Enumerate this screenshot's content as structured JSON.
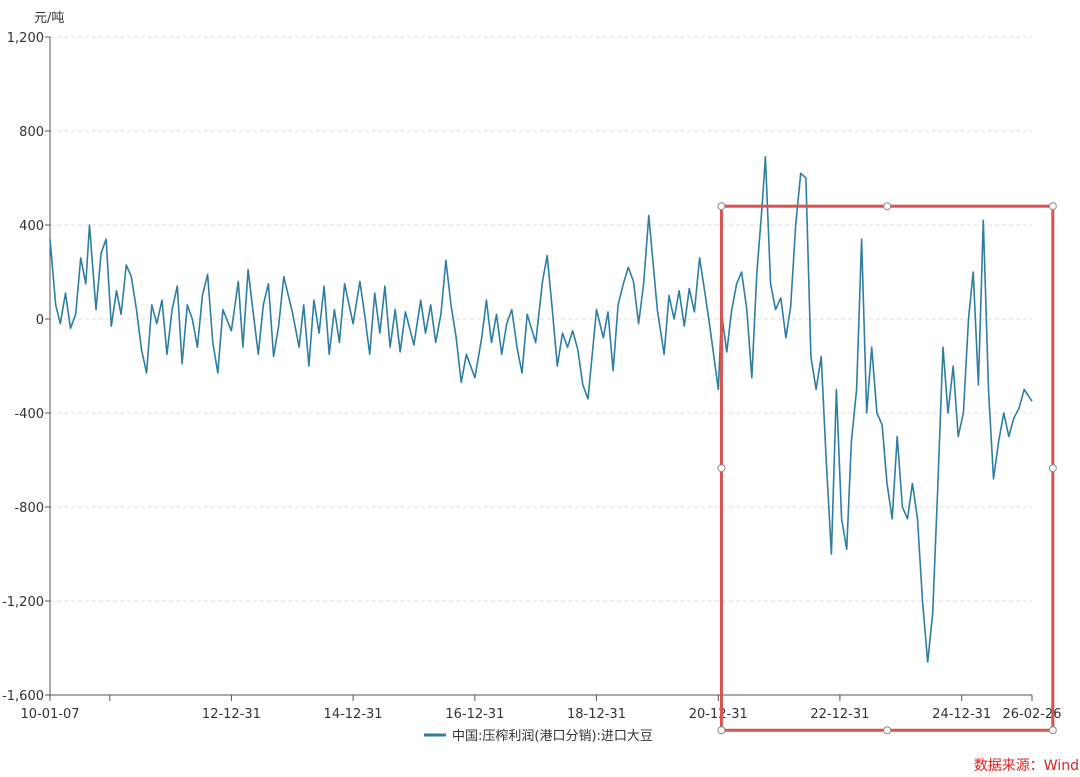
{
  "chart_data": {
    "type": "line",
    "y_unit": "元/吨",
    "ylim": [
      -1600,
      1200
    ],
    "y_ticks": [
      1200,
      800,
      400,
      0,
      -400,
      -800,
      -1200,
      -1600
    ],
    "y_tick_labels": [
      "1,200",
      "800",
      "400",
      "0",
      "-400",
      "-800",
      "-1,200",
      "-1,600"
    ],
    "x_ticks": [
      {
        "label": "10-01-07",
        "date": "2010-01-07"
      },
      {
        "label": "12-12-31",
        "date": "2012-12-31"
      },
      {
        "label": "14-12-31",
        "date": "2014-12-31"
      },
      {
        "label": "16-12-31",
        "date": "2016-12-31"
      },
      {
        "label": "18-12-31",
        "date": "2018-12-31"
      },
      {
        "label": "20-12-31",
        "date": "2020-12-31"
      },
      {
        "label": "22-12-31",
        "date": "2022-12-31"
      },
      {
        "label": "24-12-31",
        "date": "2024-12-31"
      },
      {
        "label": "26-02-26",
        "date": "2026-02-26"
      }
    ],
    "grid": "horizontal-dashed",
    "legend_position": "bottom-center",
    "series": [
      {
        "name": "中国:压榨利润(港口分销):进口大豆",
        "color": "#2e7ea3",
        "points": [
          [
            "2010-01-07",
            340
          ],
          [
            "2010-02-10",
            60
          ],
          [
            "2010-03-10",
            -20
          ],
          [
            "2010-04-10",
            110
          ],
          [
            "2010-05-10",
            -40
          ],
          [
            "2010-06-10",
            20
          ],
          [
            "2010-07-10",
            260
          ],
          [
            "2010-08-10",
            150
          ],
          [
            "2010-09-01",
            400
          ],
          [
            "2010-10-10",
            40
          ],
          [
            "2010-11-10",
            280
          ],
          [
            "2010-12-10",
            340
          ],
          [
            "2011-01-10",
            -30
          ],
          [
            "2011-02-10",
            120
          ],
          [
            "2011-03-10",
            20
          ],
          [
            "2011-04-10",
            230
          ],
          [
            "2011-05-10",
            180
          ],
          [
            "2011-06-10",
            40
          ],
          [
            "2011-07-10",
            -130
          ],
          [
            "2011-08-10",
            -230
          ],
          [
            "2011-09-10",
            60
          ],
          [
            "2011-10-10",
            -20
          ],
          [
            "2011-11-10",
            80
          ],
          [
            "2011-12-10",
            -150
          ],
          [
            "2012-01-10",
            40
          ],
          [
            "2012-02-10",
            140
          ],
          [
            "2012-03-10",
            -190
          ],
          [
            "2012-04-10",
            60
          ],
          [
            "2012-05-10",
            0
          ],
          [
            "2012-06-10",
            -120
          ],
          [
            "2012-07-10",
            100
          ],
          [
            "2012-08-10",
            190
          ],
          [
            "2012-09-10",
            -100
          ],
          [
            "2012-10-10",
            -230
          ],
          [
            "2012-11-10",
            40
          ],
          [
            "2012-12-31",
            -50
          ],
          [
            "2013-02-10",
            160
          ],
          [
            "2013-03-10",
            -120
          ],
          [
            "2013-04-10",
            210
          ],
          [
            "2013-05-10",
            30
          ],
          [
            "2013-06-10",
            -150
          ],
          [
            "2013-07-10",
            60
          ],
          [
            "2013-08-10",
            150
          ],
          [
            "2013-09-10",
            -160
          ],
          [
            "2013-10-10",
            -30
          ],
          [
            "2013-11-10",
            180
          ],
          [
            "2013-12-31",
            30
          ],
          [
            "2014-02-10",
            -120
          ],
          [
            "2014-03-10",
            60
          ],
          [
            "2014-04-10",
            -200
          ],
          [
            "2014-05-10",
            80
          ],
          [
            "2014-06-10",
            -60
          ],
          [
            "2014-07-10",
            140
          ],
          [
            "2014-08-10",
            -150
          ],
          [
            "2014-09-10",
            40
          ],
          [
            "2014-10-10",
            -100
          ],
          [
            "2014-11-10",
            150
          ],
          [
            "2014-12-31",
            -20
          ],
          [
            "2015-02-10",
            160
          ],
          [
            "2015-03-10",
            20
          ],
          [
            "2015-04-10",
            -150
          ],
          [
            "2015-05-10",
            110
          ],
          [
            "2015-06-10",
            -60
          ],
          [
            "2015-07-10",
            140
          ],
          [
            "2015-08-10",
            -120
          ],
          [
            "2015-09-10",
            40
          ],
          [
            "2015-10-10",
            -140
          ],
          [
            "2015-11-10",
            30
          ],
          [
            "2015-12-31",
            -110
          ],
          [
            "2016-02-10",
            80
          ],
          [
            "2016-03-10",
            -60
          ],
          [
            "2016-04-10",
            60
          ],
          [
            "2016-05-10",
            -100
          ],
          [
            "2016-06-10",
            20
          ],
          [
            "2016-07-10",
            250
          ],
          [
            "2016-08-10",
            60
          ],
          [
            "2016-09-10",
            -80
          ],
          [
            "2016-10-10",
            -270
          ],
          [
            "2016-11-10",
            -150
          ],
          [
            "2016-12-31",
            -250
          ],
          [
            "2017-02-10",
            -80
          ],
          [
            "2017-03-10",
            80
          ],
          [
            "2017-04-10",
            -100
          ],
          [
            "2017-05-10",
            20
          ],
          [
            "2017-06-10",
            -150
          ],
          [
            "2017-07-10",
            -20
          ],
          [
            "2017-08-10",
            40
          ],
          [
            "2017-09-10",
            -120
          ],
          [
            "2017-10-10",
            -230
          ],
          [
            "2017-11-10",
            20
          ],
          [
            "2017-12-31",
            -100
          ],
          [
            "2018-02-10",
            160
          ],
          [
            "2018-03-10",
            270
          ],
          [
            "2018-04-10",
            40
          ],
          [
            "2018-05-10",
            -200
          ],
          [
            "2018-06-10",
            -60
          ],
          [
            "2018-07-10",
            -120
          ],
          [
            "2018-08-10",
            -50
          ],
          [
            "2018-09-10",
            -130
          ],
          [
            "2018-10-10",
            -280
          ],
          [
            "2018-11-10",
            -340
          ],
          [
            "2018-12-31",
            40
          ],
          [
            "2019-02-10",
            -80
          ],
          [
            "2019-03-10",
            30
          ],
          [
            "2019-04-10",
            -220
          ],
          [
            "2019-05-10",
            60
          ],
          [
            "2019-06-10",
            150
          ],
          [
            "2019-07-10",
            220
          ],
          [
            "2019-08-10",
            160
          ],
          [
            "2019-09-10",
            -20
          ],
          [
            "2019-10-10",
            150
          ],
          [
            "2019-11-10",
            440
          ],
          [
            "2019-12-31",
            40
          ],
          [
            "2020-02-10",
            -150
          ],
          [
            "2020-03-10",
            100
          ],
          [
            "2020-04-10",
            0
          ],
          [
            "2020-05-10",
            120
          ],
          [
            "2020-06-10",
            -30
          ],
          [
            "2020-07-10",
            130
          ],
          [
            "2020-08-10",
            30
          ],
          [
            "2020-09-10",
            260
          ],
          [
            "2020-10-10",
            120
          ],
          [
            "2020-11-10",
            -30
          ],
          [
            "2020-12-31",
            -300
          ],
          [
            "2021-01-20",
            20
          ],
          [
            "2021-02-20",
            -140
          ],
          [
            "2021-03-20",
            30
          ],
          [
            "2021-04-20",
            150
          ],
          [
            "2021-05-20",
            200
          ],
          [
            "2021-06-20",
            40
          ],
          [
            "2021-07-20",
            -250
          ],
          [
            "2021-08-20",
            200
          ],
          [
            "2021-09-20",
            480
          ],
          [
            "2021-10-10",
            690
          ],
          [
            "2021-11-10",
            150
          ],
          [
            "2021-12-10",
            40
          ],
          [
            "2022-01-10",
            90
          ],
          [
            "2022-02-10",
            -80
          ],
          [
            "2022-03-10",
            50
          ],
          [
            "2022-04-10",
            400
          ],
          [
            "2022-05-10",
            620
          ],
          [
            "2022-06-10",
            600
          ],
          [
            "2022-07-10",
            -160
          ],
          [
            "2022-08-10",
            -300
          ],
          [
            "2022-09-10",
            -160
          ],
          [
            "2022-10-10",
            -600
          ],
          [
            "2022-11-10",
            -1000
          ],
          [
            "2022-12-10",
            -300
          ],
          [
            "2023-01-10",
            -850
          ],
          [
            "2023-02-10",
            -980
          ],
          [
            "2023-03-10",
            -520
          ],
          [
            "2023-04-10",
            -300
          ],
          [
            "2023-05-10",
            340
          ],
          [
            "2023-06-10",
            -400
          ],
          [
            "2023-07-10",
            -120
          ],
          [
            "2023-08-10",
            -400
          ],
          [
            "2023-09-10",
            -450
          ],
          [
            "2023-10-10",
            -700
          ],
          [
            "2023-11-10",
            -850
          ],
          [
            "2023-12-10",
            -500
          ],
          [
            "2024-01-10",
            -800
          ],
          [
            "2024-02-10",
            -850
          ],
          [
            "2024-03-10",
            -700
          ],
          [
            "2024-04-10",
            -850
          ],
          [
            "2024-05-10",
            -1200
          ],
          [
            "2024-06-10",
            -1460
          ],
          [
            "2024-07-10",
            -1250
          ],
          [
            "2024-08-10",
            -700
          ],
          [
            "2024-09-10",
            -120
          ],
          [
            "2024-10-10",
            -400
          ],
          [
            "2024-11-10",
            -200
          ],
          [
            "2024-12-10",
            -500
          ],
          [
            "2025-01-10",
            -400
          ],
          [
            "2025-02-10",
            0
          ],
          [
            "2025-03-10",
            200
          ],
          [
            "2025-04-10",
            -280
          ],
          [
            "2025-05-10",
            420
          ],
          [
            "2025-06-10",
            -300
          ],
          [
            "2025-07-10",
            -680
          ],
          [
            "2025-08-10",
            -520
          ],
          [
            "2025-09-10",
            -400
          ],
          [
            "2025-10-10",
            -500
          ],
          [
            "2025-11-10",
            -420
          ],
          [
            "2025-12-10",
            -380
          ],
          [
            "2026-01-10",
            -300
          ],
          [
            "2026-02-26",
            -350
          ]
        ]
      }
    ]
  },
  "annotation": {
    "type": "highlight-rectangle",
    "color": "#d9534f",
    "x_range": [
      "2021-01-01",
      "2026-07-01"
    ],
    "y_range": [
      -1750,
      480
    ]
  },
  "source_label": "数据来源：Wind"
}
